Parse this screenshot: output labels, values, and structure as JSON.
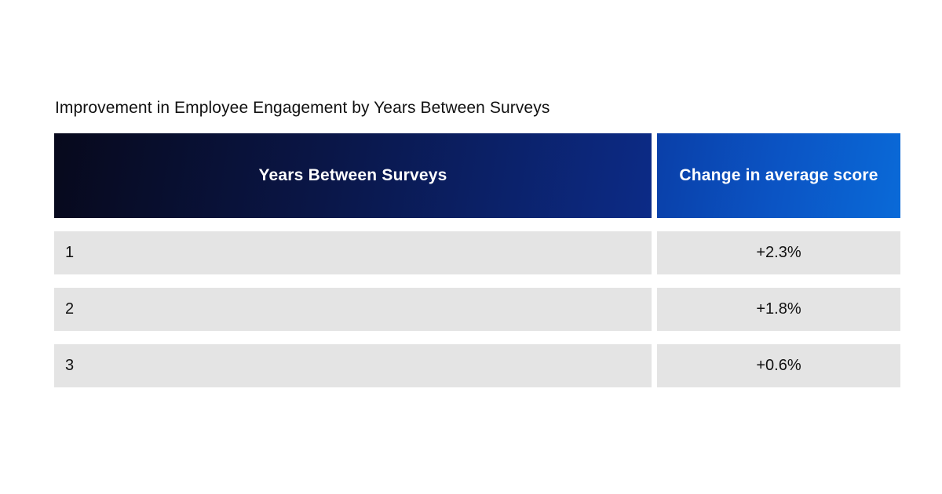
{
  "chart_data": {
    "type": "table",
    "title": "Improvement in Employee Engagement by Years Between Surveys",
    "columns": [
      "Years Between Surveys",
      "Change in average score"
    ],
    "rows": [
      {
        "years": "1",
        "change": "+2.3%"
      },
      {
        "years": "2",
        "change": "+1.8%"
      },
      {
        "years": "3",
        "change": "+0.6%"
      }
    ],
    "colors": {
      "header_dark": "#07091c",
      "header_blue": "#0b54c4",
      "row_bg": "#e4e4e4"
    }
  }
}
